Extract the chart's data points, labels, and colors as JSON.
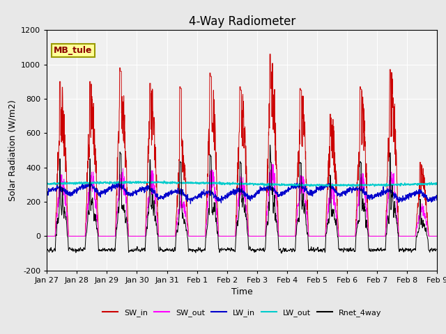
{
  "title": "4-Way Radiometer",
  "xlabel": "Time",
  "ylabel": "Solar Radiation (W/m2)",
  "ylim": [
    -200,
    1200
  ],
  "yticks": [
    -200,
    0,
    200,
    400,
    600,
    800,
    1000,
    1200
  ],
  "annotation": "MB_tule",
  "bg_color": "#e8e8e8",
  "plot_bg_color": "#f0f0f0",
  "colors": {
    "SW_in": "#cc0000",
    "SW_out": "#ff00ff",
    "LW_in": "#0000cc",
    "LW_out": "#00cccc",
    "Rnet_4way": "#000000"
  },
  "x_labels": [
    "Jan 27",
    "Jan 28",
    "Jan 29",
    "Jan 30",
    "Jan 31",
    "Feb 1",
    "Feb 2",
    "Feb 3",
    "Feb 4",
    "Feb 5",
    "Feb 6",
    "Feb 7",
    "Feb 8",
    "Feb 9"
  ],
  "num_days": 13,
  "points_per_day": 144
}
